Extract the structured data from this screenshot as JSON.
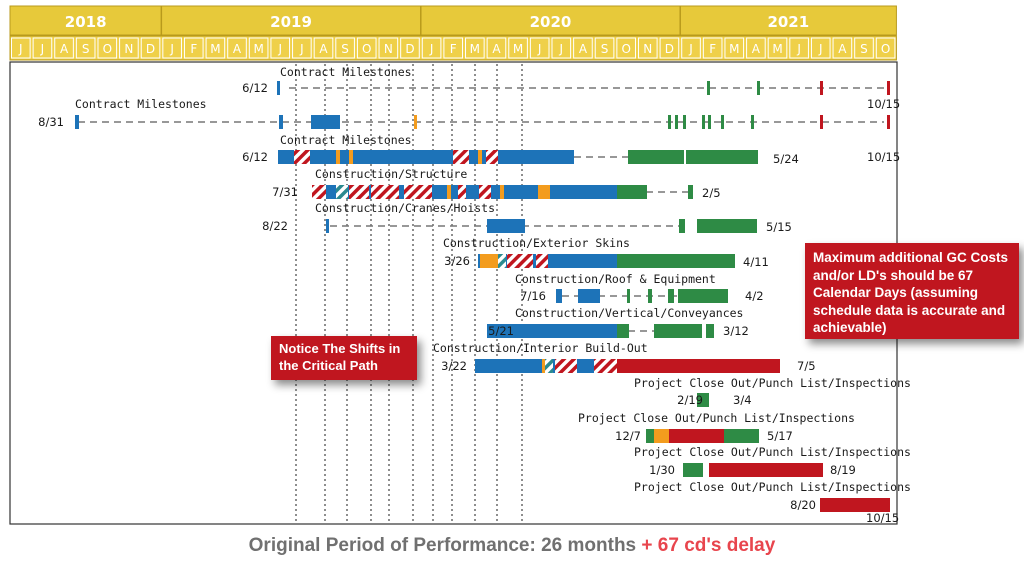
{
  "chart_data": {
    "type": "gantt",
    "colors": {
      "header_bg": "#e7c93a",
      "header_border": "#b89a1c",
      "month_bg": "#efd049",
      "original": "#1d73b8",
      "accelerated": "#2e8b45",
      "delay": "#c0161f",
      "concurrent": "#f39c1e",
      "caption_gray": "#707070",
      "caption_red": "#e8454d"
    },
    "years": [
      "2018",
      "2019",
      "2020",
      "2021"
    ],
    "months": [
      "J",
      "J",
      "A",
      "S",
      "O",
      "N",
      "D",
      "J",
      "F",
      "M",
      "A",
      "M",
      "J",
      "J",
      "A",
      "S",
      "O",
      "N",
      "D",
      "J",
      "F",
      "M",
      "A",
      "M",
      "J",
      "J",
      "A",
      "S",
      "O",
      "N",
      "D",
      "J",
      "F",
      "M",
      "A",
      "M",
      "J",
      "J",
      "A",
      "S",
      "O"
    ],
    "rows": [
      {
        "label": "Contract Milestones",
        "start": "6/12",
        "end": "10/15"
      },
      {
        "label": "Contract Milestones",
        "start": "8/31",
        "end": ""
      },
      {
        "label": "Contract Milestones",
        "start": "6/12",
        "end": "5/24",
        "extra": "10/15"
      },
      {
        "label": "Construction/Structure",
        "start": "7/31",
        "end": "2/5"
      },
      {
        "label": "Construction/Cranes/Hoists",
        "start": "8/22",
        "end": "5/15"
      },
      {
        "label": "Construction/Exterior Skins",
        "start": "3/26",
        "end": "4/11"
      },
      {
        "label": "Construction/Roof & Equipment",
        "start": "7/16",
        "end": "4/2"
      },
      {
        "label": "Construction/Vertical/Conveyances",
        "start": "5/21",
        "end": "3/12"
      },
      {
        "label": "Construction/Interior Build-Out",
        "start": "3/22",
        "end": "7/5"
      },
      {
        "label": "Project Close Out/Punch List/Inspections",
        "start": "2/19",
        "end": "3/4"
      },
      {
        "label": "Project Close Out/Punch List/Inspections",
        "start": "12/7",
        "end": "5/17"
      },
      {
        "label": "Project Close Out/Punch List/Inspections",
        "start": "1/30",
        "end": "8/19"
      },
      {
        "label": "Project Close Out/Punch List/Inspections",
        "start": "8/20",
        "end": "10/15"
      }
    ]
  },
  "callouts": {
    "shifts": "Notice The Shifts in the Critical Path",
    "costs": "Maximum additional GC Costs and/or LD's should be 67 Calendar Days (assuming schedule data is accurate and achievable)"
  },
  "caption": {
    "main": "Original Period of Performance: 26 months",
    "delay": "+ 67 cd's delay"
  }
}
